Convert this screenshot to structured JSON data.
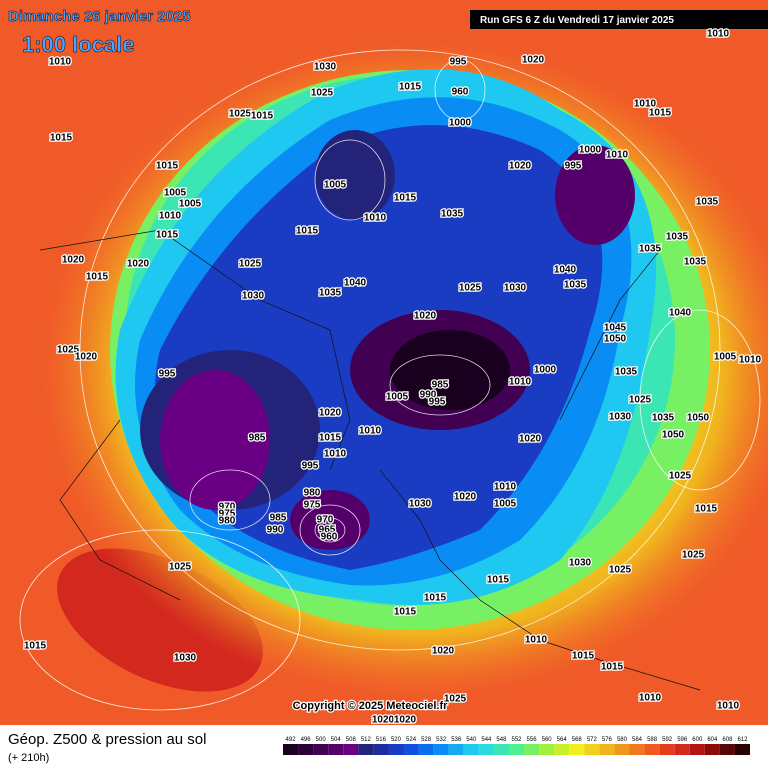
{
  "header": {
    "date": "Dimanche 26 janvier 2025",
    "time": "1:00 locale",
    "run": "Run GFS 6 Z du Vendredi 17 janvier 2025"
  },
  "map": {
    "pressure_labels": [
      1010,
      1030,
      1025,
      1015,
      995,
      960,
      1000,
      1020,
      1010,
      1010,
      1015,
      1025,
      1015,
      1015,
      1015,
      1005,
      1005,
      1010,
      1015,
      1020,
      995,
      1000,
      1010,
      1035,
      1035,
      1015,
      1010,
      1015,
      1005,
      1020,
      1015,
      1020,
      1025,
      1040,
      1035,
      1035,
      1035,
      1040,
      1035,
      1030,
      1025,
      1030,
      1035,
      1040,
      1045,
      1050,
      1020,
      1025,
      1020,
      995,
      1000,
      1010,
      985,
      990,
      995,
      1005,
      1025,
      1035,
      1030,
      1035,
      1050,
      1050,
      1020,
      1010,
      1015,
      985,
      1020,
      1010,
      995,
      1010,
      1020,
      1005,
      1030,
      1025,
      970,
      975,
      980,
      980,
      975,
      985,
      990,
      970,
      965,
      960,
      1015,
      1025,
      1025,
      1030,
      1025,
      1015,
      1015,
      1015,
      1015,
      1030,
      1020,
      1010,
      1015,
      1015,
      1010,
      1010,
      1025,
      1020,
      1020,
      1010,
      1005
    ],
    "copyright": "Copyright © 2025 Meteociel.fr"
  },
  "footer": {
    "title": "Géop. Z500 & pression au sol",
    "lead": "(+ 210h)",
    "scale": {
      "values": [
        492,
        496,
        500,
        504,
        508,
        512,
        516,
        520,
        524,
        528,
        532,
        536,
        540,
        544,
        548,
        552,
        556,
        560,
        564,
        568,
        572,
        576,
        580,
        584,
        588,
        592,
        596,
        600,
        604,
        608,
        612
      ],
      "colors": [
        "#1a001f",
        "#2d0038",
        "#410051",
        "#55006a",
        "#690083",
        "#23237a",
        "#1e2c9e",
        "#1a3cc2",
        "#1450e0",
        "#0a6ef0",
        "#0a8cf5",
        "#14aaf0",
        "#1ec8f0",
        "#28dcdc",
        "#3ce6b4",
        "#50f08c",
        "#78f064",
        "#a0f03c",
        "#c8f028",
        "#f0f01e",
        "#f0d21e",
        "#f0b41e",
        "#f0961e",
        "#f0781e",
        "#f05a1e",
        "#e63c1e",
        "#d2281e",
        "#b41414",
        "#8c0a0a",
        "#5a0505",
        "#280000"
      ]
    }
  }
}
